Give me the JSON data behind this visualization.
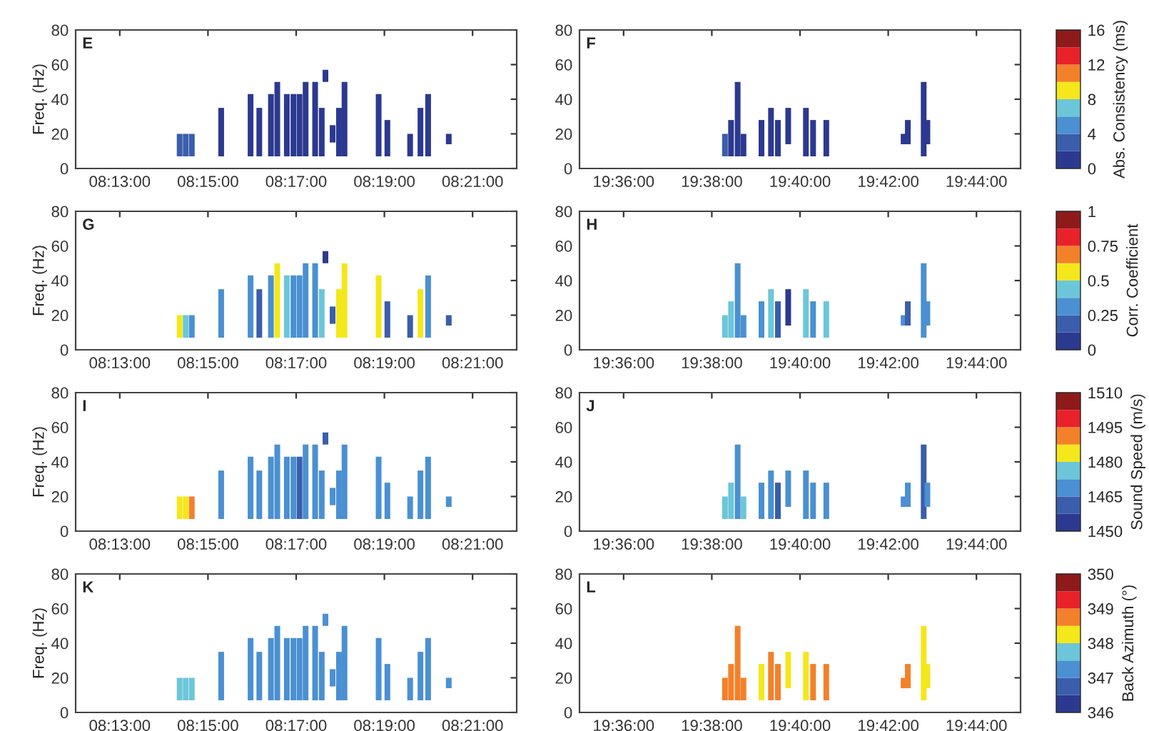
{
  "chart_data": [
    {
      "type": "bar",
      "annotations": [
        "E"
      ],
      "ylabel": "Freq. (Hz)",
      "xlim": [
        8.2,
        8.366667
      ],
      "xticks": [
        {
          "value": 8.216667,
          "label": "08:13:00"
        },
        {
          "value": 8.25,
          "label": "08:15:00"
        },
        {
          "value": 8.283333,
          "label": "08:17:00"
        },
        {
          "value": 8.316667,
          "label": "08:19:00"
        },
        {
          "value": 8.35,
          "label": "08:21:00"
        }
      ],
      "ylim": [
        0,
        80
      ],
      "yticks": [
        0,
        20,
        40,
        60,
        80
      ],
      "x": [
        8.2393,
        8.2416,
        8.2439,
        8.255,
        8.2661,
        8.2694,
        8.2738,
        8.2762,
        8.2798,
        8.2823,
        8.2846,
        8.2869,
        8.2905,
        8.293,
        8.2944,
        8.2971,
        8.2995,
        8.3016,
        8.3145,
        8.3178,
        8.3264,
        8.3303,
        8.3332,
        8.341
      ],
      "base": [
        7,
        7,
        7,
        7,
        7,
        7,
        7,
        7,
        7,
        7,
        7,
        7,
        7,
        7,
        50,
        15,
        7,
        7,
        7,
        7,
        7,
        7,
        7,
        14
      ],
      "values": [
        13,
        13,
        13,
        28,
        36,
        28,
        36,
        43,
        36,
        36,
        36,
        43,
        43,
        28,
        7,
        10,
        28,
        43,
        36,
        21,
        13,
        28,
        36,
        6
      ],
      "colors": [
        "#3a5eab",
        "#3a5eab",
        "#3a5eab",
        "#2b3990",
        "#2b3990",
        "#2b3990",
        "#2b3990",
        "#2b3990",
        "#2b3990",
        "#2b3990",
        "#2b3990",
        "#2b3990",
        "#2b3990",
        "#2b3990",
        "#2b3990",
        "#2b3990",
        "#2b3990",
        "#2b3990",
        "#2b3990",
        "#2b3990",
        "#2b3990",
        "#2b3990",
        "#2b3990",
        "#2b3990"
      ]
    },
    {
      "type": "bar",
      "annotations": [
        "F"
      ],
      "xlim": [
        19.583333,
        19.75
      ],
      "xticks": [
        {
          "value": 19.6,
          "label": "19:36:00"
        },
        {
          "value": 19.633333,
          "label": "19:38:00"
        },
        {
          "value": 19.666667,
          "label": "19:40:00"
        },
        {
          "value": 19.7,
          "label": "19:42:00"
        },
        {
          "value": 19.733333,
          "label": "19:44:00"
        }
      ],
      "ylim": [
        0,
        80
      ],
      "yticks": [
        0,
        20,
        40,
        60,
        80
      ],
      "clabel": "Abs. Consistency (ms)",
      "clim": [
        0,
        16
      ],
      "cticks": [
        0,
        4,
        8,
        12,
        16
      ],
      "x": [
        19.6383,
        19.6406,
        19.6431,
        19.6453,
        19.6521,
        19.6557,
        19.6583,
        19.6622,
        19.6689,
        19.6716,
        19.6766,
        19.7058,
        19.7074,
        19.7134,
        19.7148
      ],
      "base": [
        7,
        7,
        7,
        7,
        7,
        7,
        7,
        14,
        7,
        7,
        7,
        14,
        14,
        7,
        14
      ],
      "values": [
        13,
        21,
        43,
        13,
        21,
        28,
        21,
        21,
        28,
        21,
        21,
        6,
        14,
        43,
        14
      ],
      "colors": [
        "#3a5eab",
        "#2b3990",
        "#2b3990",
        "#2b3990",
        "#2b3990",
        "#2b3990",
        "#2b3990",
        "#2b3990",
        "#2b3990",
        "#2b3990",
        "#2b3990",
        "#2b3990",
        "#2b3990",
        "#2b3990",
        "#2b3990"
      ]
    },
    {
      "type": "bar",
      "annotations": [
        "G"
      ],
      "ylabel": "Freq. (Hz)",
      "xlim": [
        8.2,
        8.366667
      ],
      "xticks": [
        {
          "value": 8.216667,
          "label": "08:13:00"
        },
        {
          "value": 8.25,
          "label": "08:15:00"
        },
        {
          "value": 8.283333,
          "label": "08:17:00"
        },
        {
          "value": 8.316667,
          "label": "08:19:00"
        },
        {
          "value": 8.35,
          "label": "08:21:00"
        }
      ],
      "ylim": [
        0,
        80
      ],
      "yticks": [
        0,
        20,
        40,
        60,
        80
      ],
      "x": [
        8.2393,
        8.2416,
        8.2439,
        8.255,
        8.2661,
        8.2694,
        8.2738,
        8.2762,
        8.2798,
        8.2823,
        8.2846,
        8.2869,
        8.2905,
        8.293,
        8.2944,
        8.2971,
        8.2995,
        8.3016,
        8.3145,
        8.3178,
        8.3264,
        8.3303,
        8.3332,
        8.341
      ],
      "base": [
        7,
        7,
        7,
        7,
        7,
        7,
        7,
        7,
        7,
        7,
        7,
        7,
        7,
        7,
        50,
        15,
        7,
        7,
        7,
        7,
        7,
        7,
        7,
        14
      ],
      "values": [
        13,
        13,
        13,
        28,
        36,
        28,
        36,
        43,
        36,
        36,
        36,
        43,
        43,
        28,
        7,
        10,
        28,
        43,
        36,
        21,
        13,
        28,
        36,
        6
      ],
      "colors": [
        "#f4e71b",
        "#6cc6d9",
        "#4a90d2",
        "#4a90d2",
        "#4a90d2",
        "#3a5eab",
        "#4a90d2",
        "#f4e71b",
        "#6cc6d9",
        "#4a90d2",
        "#4a90d2",
        "#4a90d2",
        "#4a90d2",
        "#6cc6d9",
        "#2b3990",
        "#3a5eab",
        "#f4e71b",
        "#f4e71b",
        "#f4e71b",
        "#3a5eab",
        "#3a5eab",
        "#f4e71b",
        "#4a90d2",
        "#3a5eab"
      ]
    },
    {
      "type": "bar",
      "annotations": [
        "H"
      ],
      "xlim": [
        19.583333,
        19.75
      ],
      "xticks": [
        {
          "value": 19.6,
          "label": "19:36:00"
        },
        {
          "value": 19.633333,
          "label": "19:38:00"
        },
        {
          "value": 19.666667,
          "label": "19:40:00"
        },
        {
          "value": 19.7,
          "label": "19:42:00"
        },
        {
          "value": 19.733333,
          "label": "19:44:00"
        }
      ],
      "ylim": [
        0,
        80
      ],
      "yticks": [
        0,
        20,
        40,
        60,
        80
      ],
      "clabel": "Corr. Coefficient",
      "clim": [
        0,
        1
      ],
      "cticks": [
        0,
        0.25,
        0.5,
        0.75,
        1
      ],
      "x": [
        19.6383,
        19.6406,
        19.6431,
        19.6453,
        19.6521,
        19.6557,
        19.6583,
        19.6622,
        19.6689,
        19.6716,
        19.6766,
        19.7058,
        19.7074,
        19.7134,
        19.7148
      ],
      "base": [
        7,
        7,
        7,
        7,
        7,
        7,
        7,
        14,
        7,
        7,
        7,
        14,
        14,
        7,
        14
      ],
      "values": [
        13,
        21,
        43,
        13,
        21,
        28,
        21,
        21,
        28,
        21,
        21,
        6,
        14,
        43,
        14
      ],
      "colors": [
        "#6cc6d9",
        "#6cc6d9",
        "#4a90d2",
        "#4a90d2",
        "#4a90d2",
        "#6cc6d9",
        "#3a5eab",
        "#2b3990",
        "#6cc6d9",
        "#4a90d2",
        "#6cc6d9",
        "#4a90d2",
        "#3a5eab",
        "#4a90d2",
        "#4a90d2"
      ]
    },
    {
      "type": "bar",
      "annotations": [
        "I"
      ],
      "ylabel": "Freq. (Hz)",
      "xlim": [
        8.2,
        8.366667
      ],
      "xticks": [
        {
          "value": 8.216667,
          "label": "08:13:00"
        },
        {
          "value": 8.25,
          "label": "08:15:00"
        },
        {
          "value": 8.283333,
          "label": "08:17:00"
        },
        {
          "value": 8.316667,
          "label": "08:19:00"
        },
        {
          "value": 8.35,
          "label": "08:21:00"
        }
      ],
      "ylim": [
        0,
        80
      ],
      "yticks": [
        0,
        20,
        40,
        60,
        80
      ],
      "x": [
        8.2393,
        8.2416,
        8.2439,
        8.255,
        8.2661,
        8.2694,
        8.2738,
        8.2762,
        8.2798,
        8.2823,
        8.2846,
        8.2869,
        8.2905,
        8.293,
        8.2944,
        8.2971,
        8.2995,
        8.3016,
        8.3145,
        8.3178,
        8.3264,
        8.3303,
        8.3332,
        8.341
      ],
      "base": [
        7,
        7,
        7,
        7,
        7,
        7,
        7,
        7,
        7,
        7,
        7,
        7,
        7,
        7,
        50,
        15,
        7,
        7,
        7,
        7,
        7,
        7,
        7,
        14
      ],
      "values": [
        13,
        13,
        13,
        28,
        36,
        28,
        36,
        43,
        36,
        36,
        36,
        43,
        43,
        28,
        7,
        10,
        28,
        43,
        36,
        21,
        13,
        28,
        36,
        6
      ],
      "colors": [
        "#f4e71b",
        "#f4e71b",
        "#f3812a",
        "#4a90d2",
        "#4a90d2",
        "#4a90d2",
        "#4a90d2",
        "#4a90d2",
        "#4a90d2",
        "#4a90d2",
        "#3a5eab",
        "#4a90d2",
        "#4a90d2",
        "#4a90d2",
        "#3a5eab",
        "#4a90d2",
        "#4a90d2",
        "#4a90d2",
        "#4a90d2",
        "#4a90d2",
        "#4a90d2",
        "#4a90d2",
        "#4a90d2",
        "#4a90d2"
      ]
    },
    {
      "type": "bar",
      "annotations": [
        "J"
      ],
      "xlim": [
        19.583333,
        19.75
      ],
      "xticks": [
        {
          "value": 19.6,
          "label": "19:36:00"
        },
        {
          "value": 19.633333,
          "label": "19:38:00"
        },
        {
          "value": 19.666667,
          "label": "19:40:00"
        },
        {
          "value": 19.7,
          "label": "19:42:00"
        },
        {
          "value": 19.733333,
          "label": "19:44:00"
        }
      ],
      "ylim": [
        0,
        80
      ],
      "yticks": [
        0,
        20,
        40,
        60,
        80
      ],
      "clabel": "Sound Speed (m/s)",
      "clim": [
        1450,
        1510
      ],
      "cticks": [
        1450,
        1465,
        1480,
        1495,
        1510
      ],
      "x": [
        19.6383,
        19.6406,
        19.6431,
        19.6453,
        19.6521,
        19.6557,
        19.6583,
        19.6622,
        19.6689,
        19.6716,
        19.6766,
        19.7058,
        19.7074,
        19.7134,
        19.7148
      ],
      "base": [
        7,
        7,
        7,
        7,
        7,
        7,
        7,
        14,
        7,
        7,
        7,
        14,
        14,
        7,
        14
      ],
      "values": [
        13,
        21,
        43,
        13,
        21,
        28,
        21,
        21,
        28,
        21,
        21,
        6,
        14,
        43,
        14
      ],
      "colors": [
        "#6cc6d9",
        "#6cc6d9",
        "#4a90d2",
        "#6cc6d9",
        "#4a90d2",
        "#4a90d2",
        "#3a5eab",
        "#4a90d2",
        "#4a90d2",
        "#4a90d2",
        "#4a90d2",
        "#4a90d2",
        "#4a90d2",
        "#3a5eab",
        "#4a90d2"
      ]
    },
    {
      "type": "bar",
      "annotations": [
        "K"
      ],
      "ylabel": "Freq. (Hz)",
      "xlim": [
        8.2,
        8.366667
      ],
      "xticks": [
        {
          "value": 8.216667,
          "label": "08:13:00"
        },
        {
          "value": 8.25,
          "label": "08:15:00"
        },
        {
          "value": 8.283333,
          "label": "08:17:00"
        },
        {
          "value": 8.316667,
          "label": "08:19:00"
        },
        {
          "value": 8.35,
          "label": "08:21:00"
        }
      ],
      "ylim": [
        0,
        80
      ],
      "yticks": [
        0,
        20,
        40,
        60,
        80
      ],
      "x": [
        8.2393,
        8.2416,
        8.2439,
        8.255,
        8.2661,
        8.2694,
        8.2738,
        8.2762,
        8.2798,
        8.2823,
        8.2846,
        8.2869,
        8.2905,
        8.293,
        8.2944,
        8.2971,
        8.2995,
        8.3016,
        8.3145,
        8.3178,
        8.3264,
        8.3303,
        8.3332,
        8.341
      ],
      "base": [
        7,
        7,
        7,
        7,
        7,
        7,
        7,
        7,
        7,
        7,
        7,
        7,
        7,
        7,
        50,
        15,
        7,
        7,
        7,
        7,
        7,
        7,
        7,
        14
      ],
      "values": [
        13,
        13,
        13,
        28,
        36,
        28,
        36,
        43,
        36,
        36,
        36,
        43,
        43,
        28,
        7,
        10,
        28,
        43,
        36,
        21,
        13,
        28,
        36,
        6
      ],
      "colors": [
        "#6cc6d9",
        "#6cc6d9",
        "#6cc6d9",
        "#4a90d2",
        "#4a90d2",
        "#4a90d2",
        "#4a90d2",
        "#4a90d2",
        "#4a90d2",
        "#4a90d2",
        "#4a90d2",
        "#4a90d2",
        "#4a90d2",
        "#4a90d2",
        "#4a90d2",
        "#4a90d2",
        "#4a90d2",
        "#4a90d2",
        "#4a90d2",
        "#4a90d2",
        "#4a90d2",
        "#4a90d2",
        "#4a90d2",
        "#4a90d2"
      ]
    },
    {
      "type": "bar",
      "annotations": [
        "L"
      ],
      "xlim": [
        19.583333,
        19.75
      ],
      "xticks": [
        {
          "value": 19.6,
          "label": "19:36:00"
        },
        {
          "value": 19.633333,
          "label": "19:38:00"
        },
        {
          "value": 19.666667,
          "label": "19:40:00"
        },
        {
          "value": 19.7,
          "label": "19:42:00"
        },
        {
          "value": 19.733333,
          "label": "19:44:00"
        }
      ],
      "ylim": [
        0,
        80
      ],
      "yticks": [
        0,
        20,
        40,
        60,
        80
      ],
      "clabel": "Back Azimuth (°)",
      "clim": [
        346,
        350
      ],
      "cticks": [
        346,
        347,
        348,
        349,
        350
      ],
      "x": [
        19.6383,
        19.6406,
        19.6431,
        19.6453,
        19.6521,
        19.6557,
        19.6583,
        19.6622,
        19.6689,
        19.6716,
        19.6766,
        19.7058,
        19.7074,
        19.7134,
        19.7148
      ],
      "base": [
        7,
        7,
        7,
        7,
        7,
        7,
        7,
        14,
        7,
        7,
        7,
        14,
        14,
        7,
        14
      ],
      "values": [
        13,
        21,
        43,
        13,
        21,
        28,
        21,
        21,
        28,
        21,
        21,
        6,
        14,
        43,
        14
      ],
      "colors": [
        "#f3812a",
        "#f3812a",
        "#f3812a",
        "#f3812a",
        "#f4e71b",
        "#f3812a",
        "#f3812a",
        "#f4e71b",
        "#f4e71b",
        "#f3812a",
        "#f3812a",
        "#f3812a",
        "#f3812a",
        "#f4e71b",
        "#f4e71b"
      ]
    }
  ]
}
